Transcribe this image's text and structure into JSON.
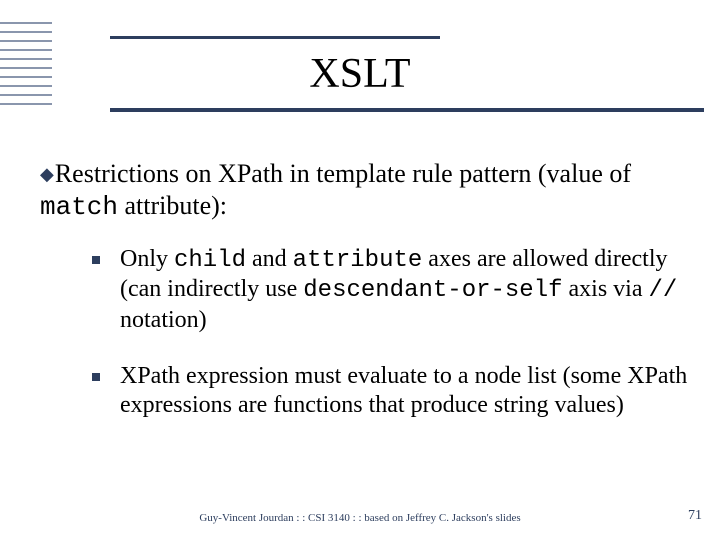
{
  "colors": {
    "accent": "#2d3e5e",
    "stripe": "#8a96ad",
    "text": "#000000",
    "footer": "#2d3e5e"
  },
  "title": "XSLT",
  "main": {
    "pre": "Restrictions on XPath in template rule pattern (value of ",
    "code": "match",
    "post": " attribute):"
  },
  "sub1": {
    "t1": "Only ",
    "c1": "child",
    "t2": " and ",
    "c2": "attribute",
    "t3": " axes are allowed directly (can indirectly use ",
    "c3": "descendant-or-self",
    "t4": " axis via ",
    "c4": "//",
    "t5": " notation)"
  },
  "sub2": {
    "text": "XPath expression must evaluate to a node list (some XPath expressions are functions that produce string values)"
  },
  "footer": "Guy-Vincent Jourdan : : CSI 3140 : : based on Jeffrey C. Jackson's slides",
  "page": "71"
}
